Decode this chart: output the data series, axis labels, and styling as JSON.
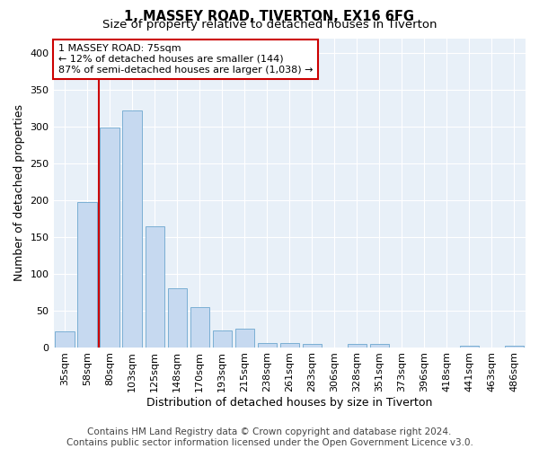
{
  "title": "1, MASSEY ROAD, TIVERTON, EX16 6FG",
  "subtitle": "Size of property relative to detached houses in Tiverton",
  "xlabel": "Distribution of detached houses by size in Tiverton",
  "ylabel": "Number of detached properties",
  "footer_line1": "Contains HM Land Registry data © Crown copyright and database right 2024.",
  "footer_line2": "Contains public sector information licensed under the Open Government Licence v3.0.",
  "bar_labels": [
    "35sqm",
    "58sqm",
    "80sqm",
    "103sqm",
    "125sqm",
    "148sqm",
    "170sqm",
    "193sqm",
    "215sqm",
    "238sqm",
    "261sqm",
    "283sqm",
    "306sqm",
    "328sqm",
    "351sqm",
    "373sqm",
    "396sqm",
    "418sqm",
    "441sqm",
    "463sqm",
    "486sqm"
  ],
  "bar_values": [
    22,
    197,
    298,
    322,
    164,
    80,
    55,
    23,
    25,
    6,
    6,
    4,
    0,
    4,
    4,
    0,
    0,
    0,
    2,
    0,
    2
  ],
  "bar_color": "#c6d9f0",
  "bar_edge_color": "#7bafd4",
  "vline_color": "#cc0000",
  "annotation_text": "1 MASSEY ROAD: 75sqm\n← 12% of detached houses are smaller (144)\n87% of semi-detached houses are larger (1,038) →",
  "annotation_box_facecolor": "#ffffff",
  "annotation_box_edgecolor": "#cc0000",
  "ylim": [
    0,
    420
  ],
  "yticks": [
    0,
    50,
    100,
    150,
    200,
    250,
    300,
    350,
    400
  ],
  "bg_color": "#ffffff",
  "axes_bg_color": "#e8f0f8",
  "title_fontsize": 10.5,
  "subtitle_fontsize": 9.5,
  "axis_label_fontsize": 9,
  "tick_fontsize": 8,
  "annotation_fontsize": 8,
  "footer_fontsize": 7.5
}
